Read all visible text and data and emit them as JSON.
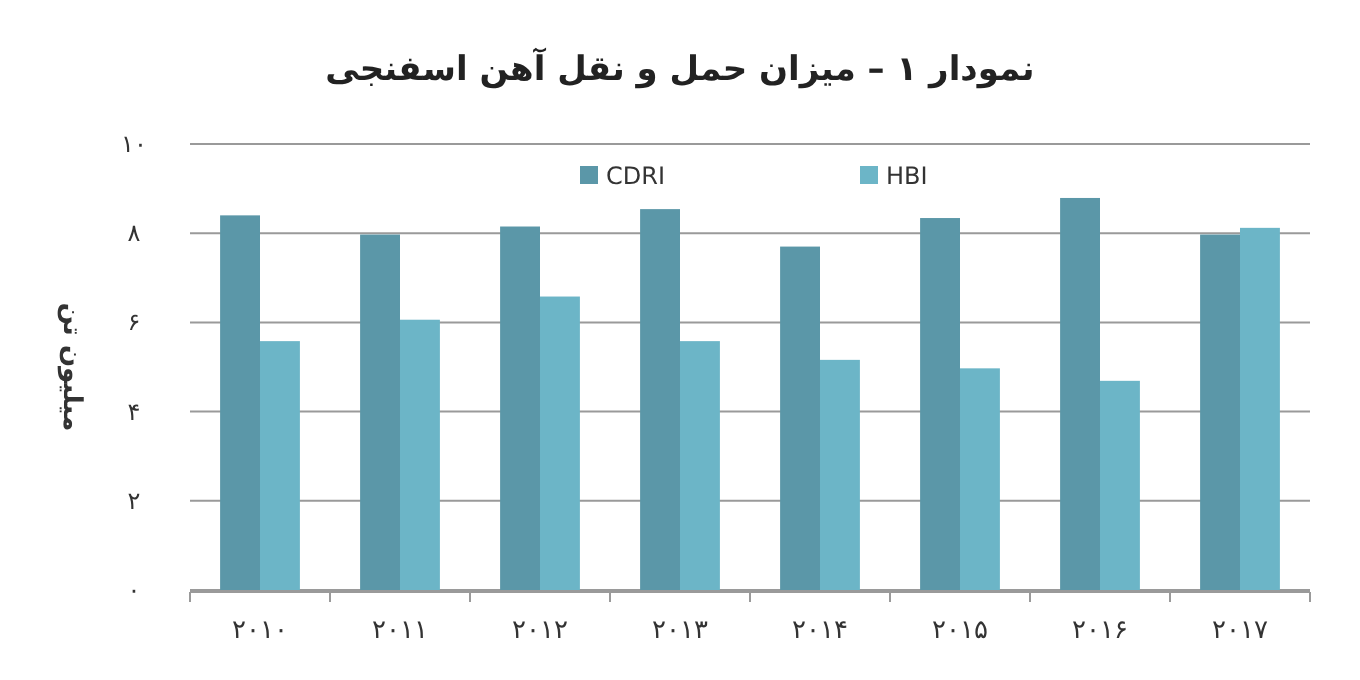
{
  "chart_data": {
    "type": "bar",
    "title": "نمودار ۱ – میزان حمل و نقل آهن اسفنجی",
    "ylabel": "میلیون تن",
    "categories": [
      "۲۰۱۰",
      "۲۰۱۱",
      "۲۰۱۲",
      "۲۰۱۳",
      "۲۰۱۴",
      "۲۰۱۵",
      "۲۰۱۶",
      "۲۰۱۷"
    ],
    "series": [
      {
        "name": "CDRI",
        "color": "#5b97a8",
        "values": [
          8.4,
          7.97,
          8.15,
          8.54,
          7.7,
          8.34,
          8.79,
          7.97
        ]
      },
      {
        "name": "HBI",
        "color": "#6cb5c7",
        "values": [
          5.58,
          6.06,
          6.58,
          5.58,
          5.16,
          4.97,
          4.69,
          8.12
        ]
      }
    ],
    "ylim": [
      0,
      10
    ],
    "yticks": [
      {
        "value": 0,
        "label": "۰"
      },
      {
        "value": 2,
        "label": "۲"
      },
      {
        "value": 4,
        "label": "۴"
      },
      {
        "value": 6,
        "label": "۶"
      },
      {
        "value": 8,
        "label": "۸"
      },
      {
        "value": 10,
        "label": "۱۰"
      }
    ],
    "grid": "y",
    "legend": "top"
  }
}
